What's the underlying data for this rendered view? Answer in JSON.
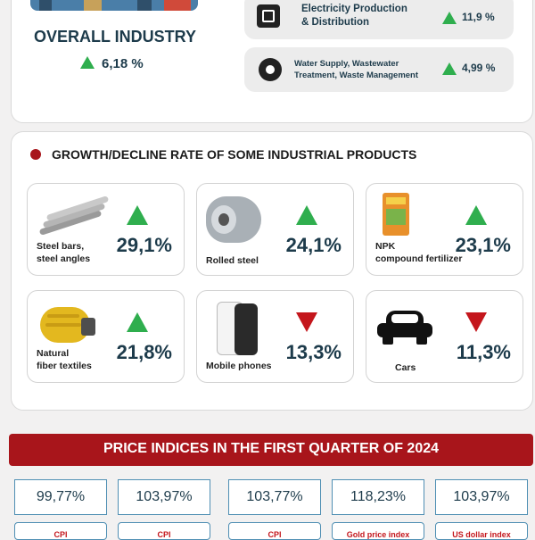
{
  "top": {
    "overall_title": "OVERALL INDUSTRY",
    "overall_value": "6,18 %",
    "sectors": [
      {
        "icon": "chip-icon",
        "label_line1": "Electricity Production",
        "label_line2": "& Distribution",
        "value": "11,9 %"
      },
      {
        "icon": "gear-water-icon",
        "label_line1": "Water Supply, Wastewater",
        "label_line2": "Treatment, Waste Management",
        "value": "4,99 %"
      }
    ]
  },
  "products_section": {
    "title": "GROWTH/DECLINE RATE OF SOME INDUSTRIAL PRODUCTS",
    "items": [
      {
        "name_line1": "Steel bars,",
        "name_line2": "steel angles",
        "value": "29,1%",
        "trend": "up",
        "icon": "steel-bars-icon"
      },
      {
        "name_line1": "Rolled steel",
        "name_line2": "",
        "value": "24,1%",
        "trend": "up",
        "icon": "steel-coil-icon"
      },
      {
        "name_line1": "NPK",
        "name_line2": "compound fertilizer",
        "value": "23,1%",
        "trend": "up",
        "icon": "fertilizer-bag-icon"
      },
      {
        "name_line1": "Natural",
        "name_line2": "fiber textiles",
        "value": "21,8%",
        "trend": "up",
        "icon": "yarn-ball-icon"
      },
      {
        "name_line1": "Mobile phones",
        "name_line2": "",
        "value": "13,3%",
        "trend": "down",
        "icon": "mobile-phone-icon"
      },
      {
        "name_line1": "Cars",
        "name_line2": "",
        "value": "11,3%",
        "trend": "down",
        "icon": "car-icon"
      }
    ]
  },
  "price_section": {
    "title": "PRICE INDICES IN THE FIRST QUARTER OF 2024",
    "indices": [
      {
        "value": "99,77%",
        "label": "CPI"
      },
      {
        "value": "103,97%",
        "label": "CPI"
      },
      {
        "value": "103,77%",
        "label": "CPI"
      },
      {
        "value": "118,23%",
        "label": "Gold price index"
      },
      {
        "value": "103,97%",
        "label": "US dollar index"
      }
    ]
  },
  "colors": {
    "up": "#2fae4e",
    "down": "#c4161c",
    "banner": "#a8151b",
    "text_dark": "#1d3b4b"
  }
}
